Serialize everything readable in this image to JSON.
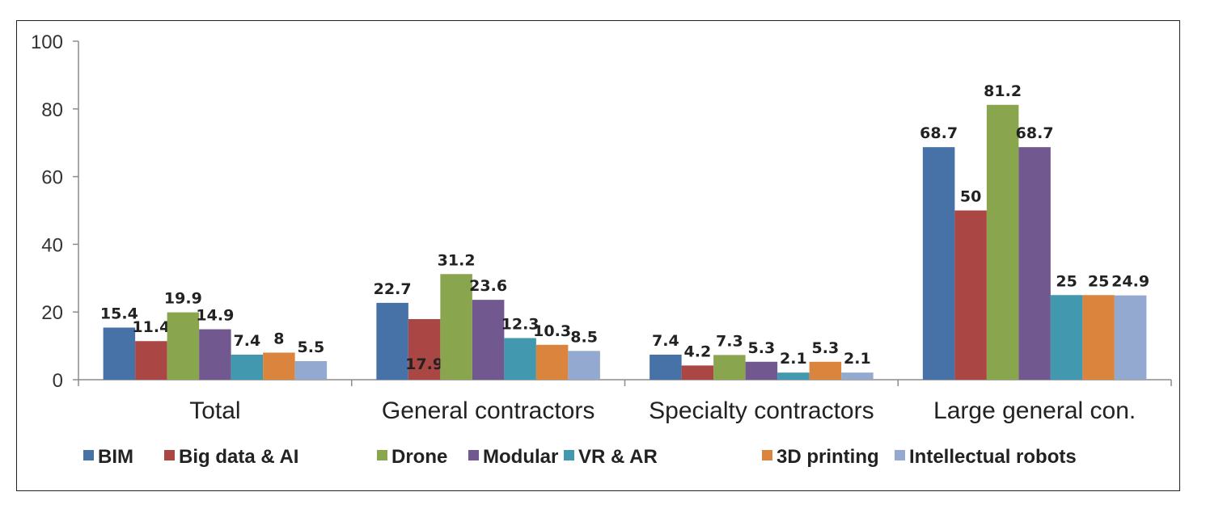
{
  "chart_data": {
    "type": "bar",
    "title": "",
    "xlabel": "",
    "ylabel": "",
    "ylim": [
      0,
      100
    ],
    "yticks": [
      0,
      20,
      40,
      60,
      80,
      100
    ],
    "grid": false,
    "legend_position": "bottom",
    "categories": [
      "Total",
      "General contractors",
      "Specialty contractors",
      "Large general con."
    ],
    "series": [
      {
        "name": "BIM",
        "color": "#4672a8",
        "values": [
          15.4,
          22.7,
          7.4,
          68.7
        ],
        "labels": [
          "15.4",
          "22.7",
          "7.4",
          "68.7"
        ]
      },
      {
        "name": "Big data & AI",
        "color": "#aa4643",
        "values": [
          11.4,
          17.9,
          4.2,
          50
        ],
        "labels": [
          "11.4",
          "17.9",
          "4.2",
          "50"
        ]
      },
      {
        "name": "Drone",
        "color": "#89a54e",
        "values": [
          19.9,
          31.2,
          7.3,
          81.2
        ],
        "labels": [
          "19.9",
          "31.2",
          "7.3",
          "81.2"
        ]
      },
      {
        "name": "Modular",
        "color": "#71588f",
        "values": [
          14.9,
          23.6,
          5.3,
          68.7
        ],
        "labels": [
          "14.9",
          "23.6",
          "5.3",
          "68.7"
        ]
      },
      {
        "name": "VR & AR",
        "color": "#4198af",
        "values": [
          7.4,
          12.3,
          2.1,
          25
        ],
        "labels": [
          "7.4",
          "12.3",
          "2.1",
          "25"
        ]
      },
      {
        "name": "3D printing",
        "color": "#db843d",
        "values": [
          8,
          10.3,
          5.3,
          25
        ],
        "labels": [
          "8",
          "10.3",
          "5.3",
          "25"
        ]
      },
      {
        "name": "Intellectual robots",
        "color": "#93a9cf",
        "values": [
          5.5,
          8.5,
          2.1,
          24.9
        ],
        "labels": [
          "5.5",
          "8.5",
          "2.1",
          "24.9"
        ]
      }
    ]
  }
}
